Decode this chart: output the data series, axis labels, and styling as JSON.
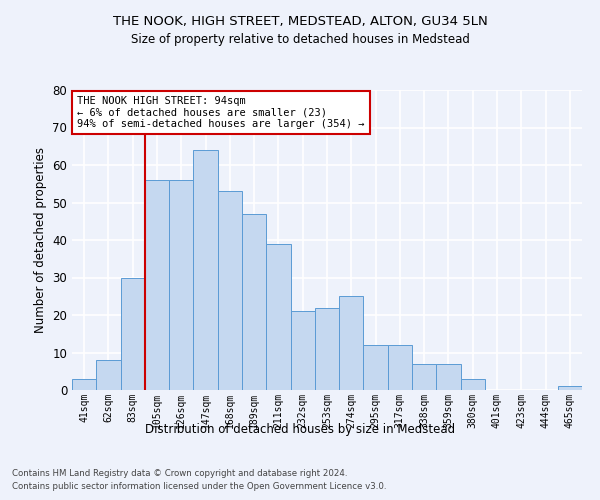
{
  "title_line1": "THE NOOK, HIGH STREET, MEDSTEAD, ALTON, GU34 5LN",
  "title_line2": "Size of property relative to detached houses in Medstead",
  "xlabel": "Distribution of detached houses by size in Medstead",
  "ylabel": "Number of detached properties",
  "bar_labels": [
    "41sqm",
    "62sqm",
    "83sqm",
    "105sqm",
    "126sqm",
    "147sqm",
    "168sqm",
    "189sqm",
    "211sqm",
    "232sqm",
    "253sqm",
    "274sqm",
    "295sqm",
    "317sqm",
    "338sqm",
    "359sqm",
    "380sqm",
    "401sqm",
    "423sqm",
    "444sqm",
    "465sqm"
  ],
  "bar_values": [
    3,
    8,
    30,
    56,
    56,
    64,
    53,
    47,
    39,
    21,
    22,
    25,
    12,
    12,
    7,
    7,
    3,
    0,
    0,
    0,
    1
  ],
  "bar_color": "#c5d8f0",
  "bar_edge_color": "#5b9bd5",
  "fig_background_color": "#eef2fb",
  "ax_background_color": "#eef2fb",
  "grid_color": "#ffffff",
  "annotation_box_text": "THE NOOK HIGH STREET: 94sqm\n← 6% of detached houses are smaller (23)\n94% of semi-detached houses are larger (354) →",
  "annotation_box_color": "#ffffff",
  "annotation_box_edge_color": "#cc0000",
  "vline_x_index": 2.5,
  "vline_color": "#cc0000",
  "ylim": [
    0,
    80
  ],
  "yticks": [
    0,
    10,
    20,
    30,
    40,
    50,
    60,
    70,
    80
  ],
  "footer_line1": "Contains HM Land Registry data © Crown copyright and database right 2024.",
  "footer_line2": "Contains public sector information licensed under the Open Government Licence v3.0."
}
